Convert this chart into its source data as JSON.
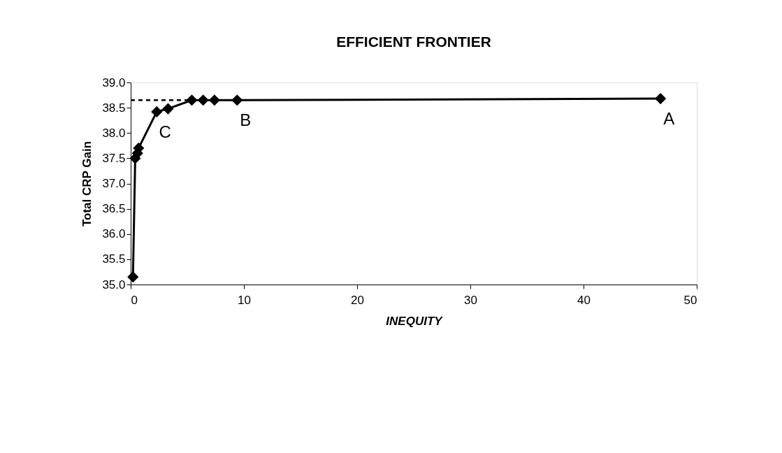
{
  "chart_data": {
    "type": "line",
    "title": "EFFICIENT FRONTIER",
    "xlabel": "INEQUITY",
    "ylabel": "Total CRP Gain",
    "x": [
      0.2,
      0.4,
      0.6,
      0.7,
      2.3,
      3.3,
      5.4,
      6.4,
      7.4,
      9.4,
      46.8
    ],
    "series": [
      {
        "color": "#000000",
        "values": [
          35.15,
          37.5,
          37.6,
          37.7,
          38.42,
          38.48,
          38.65,
          38.65,
          38.65,
          38.65,
          38.68
        ]
      }
    ],
    "marker": "diamond",
    "line_style": "solid",
    "xlim": [
      0,
      50
    ],
    "xticks": [
      0,
      10,
      20,
      30,
      40,
      50
    ],
    "ylim": [
      35,
      39
    ],
    "yticks": [
      {
        "value": 35,
        "label": "35.0"
      },
      {
        "value": 35.5,
        "label": "35.5"
      },
      {
        "value": 36,
        "label": "36.0"
      },
      {
        "value": 36.5,
        "label": "36.5"
      },
      {
        "value": 37,
        "label": "37.0"
      },
      {
        "value": 37.5,
        "label": "37.5"
      },
      {
        "value": 38,
        "label": "38.0"
      },
      {
        "value": 38.5,
        "label": "38.5"
      },
      {
        "value": 39,
        "label": "39.0"
      }
    ],
    "ref_lines": [
      {
        "axis": "y",
        "value": 38.65,
        "color": "#000000",
        "line_style": "dashed"
      }
    ],
    "annotations": [
      {
        "text": "C",
        "x": 2.3,
        "y": 38.42
      },
      {
        "text": "B",
        "x": 9.4,
        "y": 38.65
      },
      {
        "text": "A",
        "x": 46.8,
        "y": 38.68
      }
    ]
  }
}
